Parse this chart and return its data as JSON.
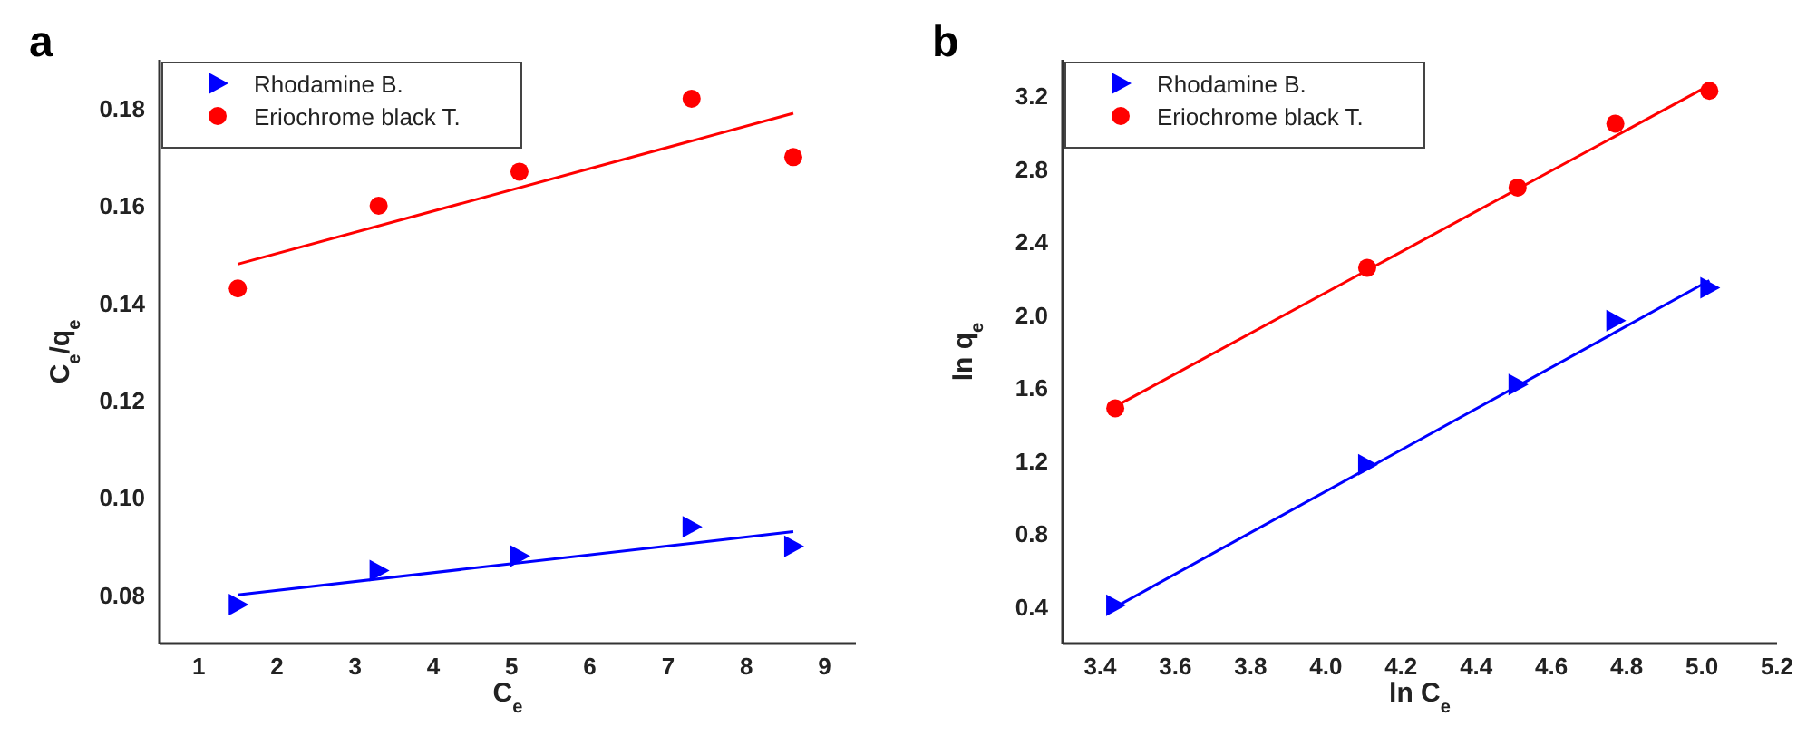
{
  "chart_data": [
    {
      "type": "scatter",
      "title": "a",
      "xlabel": "C$_{e}$",
      "ylabel": "C$_{e}$/q$_{e}$",
      "xlim": [
        0.5,
        9.4
      ],
      "xticks": [
        1,
        2,
        3,
        4,
        5,
        6,
        7,
        8,
        9
      ],
      "ylim": [
        0.07,
        0.19
      ],
      "yticks": [
        0.08,
        {
          "value": 0.1,
          "label": "0.10"
        },
        0.12,
        0.14,
        0.16,
        0.18
      ],
      "grid": false,
      "legend": "top left",
      "series": [
        {
          "name": "Rhodamine B.",
          "color": "#0000ff",
          "marker": "triangle",
          "x": [
            1.5,
            3.3,
            5.1,
            7.3,
            8.6
          ],
          "values": [
            0.078,
            0.085,
            0.088,
            0.094,
            0.09
          ]
        },
        {
          "name": "Eriochrome black T.",
          "color": "#ff0000",
          "marker": "circle",
          "x": [
            1.5,
            3.3,
            5.1,
            7.3,
            8.6
          ],
          "values": [
            0.143,
            0.16,
            0.167,
            0.182,
            0.17
          ]
        },
        {
          "type": "line",
          "color": "#0000ff",
          "x": [
            1.5,
            8.6
          ],
          "values": [
            0.08,
            0.093
          ]
        },
        {
          "type": "line",
          "color": "#ff0000",
          "x": [
            1.5,
            8.6
          ],
          "values": [
            0.148,
            0.179
          ]
        }
      ]
    },
    {
      "type": "scatter",
      "title": "b",
      "xlabel": "ln C$_{e}$",
      "ylabel": "ln q$_{e}$",
      "xlim": [
        3.3,
        5.2
      ],
      "xticks": [
        3.4,
        3.6,
        3.8,
        {
          "value": 4,
          "label": "4.0"
        },
        4.2,
        4.4,
        4.6,
        4.8,
        {
          "value": 5,
          "label": "5.0"
        },
        5.2
      ],
      "ylim": [
        0.2,
        3.4
      ],
      "yticks": [
        0.4,
        0.8,
        1.2,
        1.6,
        {
          "value": 2,
          "label": "2.0"
        },
        2.4,
        2.8,
        3.2
      ],
      "grid": false,
      "legend": "top left",
      "series": [
        {
          "name": "Rhodamine B.",
          "color": "#0000ff",
          "marker": "triangle",
          "x": [
            3.44,
            4.11,
            4.51,
            4.77,
            5.02
          ],
          "values": [
            0.41,
            1.18,
            1.62,
            1.97,
            2.15
          ]
        },
        {
          "name": "Eriochrome black T.",
          "color": "#ff0000",
          "marker": "circle",
          "x": [
            3.44,
            4.11,
            4.51,
            4.77,
            5.02
          ],
          "values": [
            1.49,
            2.26,
            2.7,
            3.05,
            3.23
          ]
        },
        {
          "type": "line",
          "color": "#0000ff",
          "x": [
            3.44,
            5.02
          ],
          "values": [
            0.4,
            2.19
          ]
        },
        {
          "type": "line",
          "color": "#ff0000",
          "x": [
            3.44,
            5.02
          ],
          "values": [
            1.5,
            3.26
          ]
        }
      ]
    }
  ]
}
